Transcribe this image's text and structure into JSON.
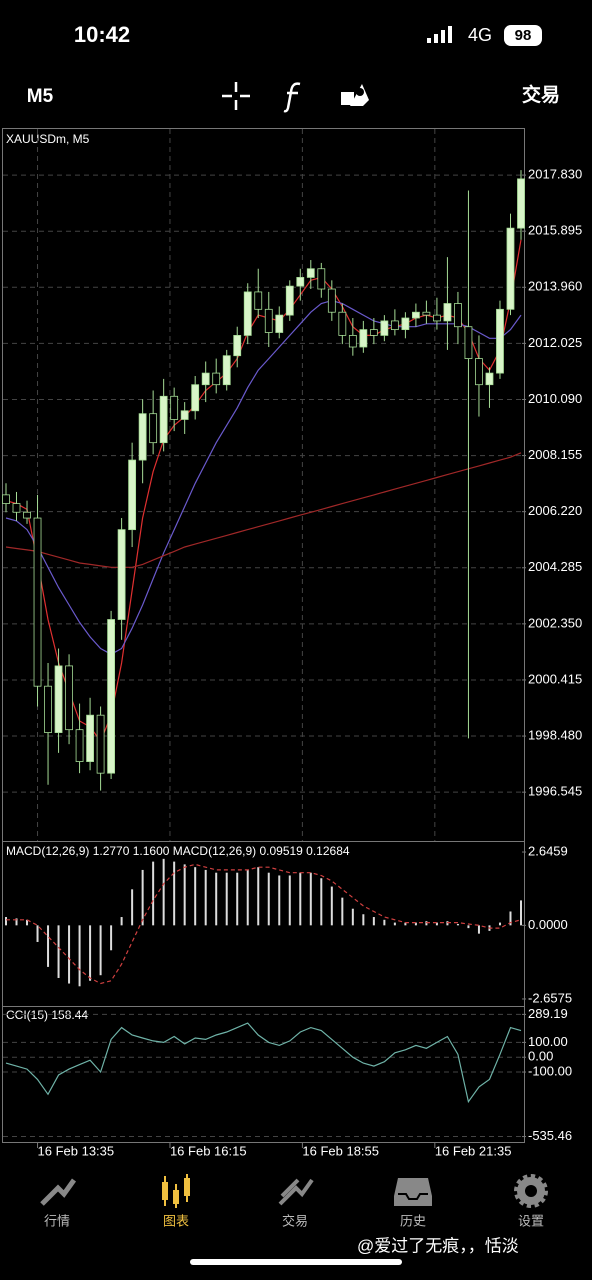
{
  "status_bar": {
    "time": "10:42",
    "network": "4G",
    "battery": "98"
  },
  "toolbar": {
    "timeframe": "M5",
    "trade": "交易"
  },
  "chart_data": [
    {
      "type": "candlestick",
      "title": "XAUUSDm, M5",
      "x": [
        0,
        1,
        2,
        3,
        4,
        5,
        6,
        7,
        8,
        9,
        10,
        11,
        12,
        13,
        14,
        15,
        16,
        17,
        18,
        19,
        20,
        21,
        22,
        23,
        24,
        25,
        26,
        27,
        28,
        29,
        30,
        31,
        32,
        33,
        34,
        35,
        36,
        37,
        38,
        39,
        40,
        41,
        42,
        43,
        44,
        45,
        46,
        47,
        48,
        49
      ],
      "open": [
        2006.8,
        2006.5,
        2006.2,
        2006.0,
        2000.2,
        1998.6,
        2000.9,
        1998.7,
        1997.6,
        1999.2,
        1997.2,
        2002.5,
        2005.6,
        2008.0,
        2009.6,
        2008.6,
        2010.2,
        2009.4,
        2009.7,
        2010.6,
        2011.0,
        2010.6,
        2011.6,
        2012.3,
        2013.8,
        2013.2,
        2012.4,
        2013.0,
        2014.0,
        2014.3,
        2014.6,
        2013.9,
        2013.1,
        2012.3,
        2011.9,
        2012.5,
        2012.3,
        2012.8,
        2012.5,
        2012.9,
        2013.1,
        2013.0,
        2012.8,
        2013.4,
        2012.6,
        2011.5,
        2010.6,
        2011.0,
        2013.2,
        2016.0
      ],
      "high": [
        2007.2,
        2006.9,
        2006.6,
        2006.8,
        2001.0,
        2001.5,
        2001.3,
        1999.6,
        1999.8,
        1999.5,
        2002.8,
        2006.0,
        2008.6,
        2010.1,
        2010.4,
        2010.8,
        2010.5,
        2010.0,
        2010.9,
        2011.4,
        2011.5,
        2011.8,
        2012.6,
        2014.1,
        2014.6,
        2013.8,
        2013.3,
        2014.2,
        2014.6,
        2014.9,
        2014.8,
        2014.2,
        2013.4,
        2012.9,
        2012.8,
        2012.9,
        2013.0,
        2013.2,
        2013.1,
        2013.4,
        2013.5,
        2013.6,
        2015.0,
        2013.8,
        2017.3,
        2012.3,
        2011.2,
        2013.5,
        2016.5,
        2018.0
      ],
      "low": [
        2006.2,
        2005.9,
        2005.8,
        1999.5,
        1996.8,
        1997.9,
        1998.2,
        1997.2,
        1997.3,
        1996.6,
        1997.0,
        2001.8,
        2005.0,
        2007.2,
        2008.2,
        2008.3,
        2009.0,
        2008.9,
        2009.4,
        2010.0,
        2010.3,
        2010.4,
        2011.2,
        2012.0,
        2012.9,
        2011.9,
        2012.2,
        2012.8,
        2013.5,
        2013.9,
        2013.6,
        2012.8,
        2012.0,
        2011.6,
        2011.7,
        2012.0,
        2012.1,
        2012.3,
        2012.2,
        2012.6,
        2012.7,
        2012.5,
        2011.8,
        2012.0,
        1998.4,
        2009.5,
        2009.8,
        2010.8,
        2013.0,
        2015.6
      ],
      "close": [
        2006.5,
        2006.2,
        2006.0,
        2000.2,
        1998.6,
        2000.9,
        1998.7,
        1997.6,
        1999.2,
        1997.2,
        2002.5,
        2005.6,
        2008.0,
        2009.6,
        2008.6,
        2010.2,
        2009.4,
        2009.7,
        2010.6,
        2011.0,
        2010.6,
        2011.6,
        2012.3,
        2013.8,
        2013.2,
        2012.4,
        2013.0,
        2014.0,
        2014.3,
        2014.6,
        2013.9,
        2013.1,
        2012.3,
        2011.9,
        2012.5,
        2012.3,
        2012.8,
        2012.5,
        2012.9,
        2013.1,
        2013.0,
        2012.8,
        2013.4,
        2012.6,
        2011.5,
        2010.6,
        2011.0,
        2013.2,
        2016.0,
        2017.7
      ],
      "up_color": "#d8f5c8",
      "down_color": "#000000",
      "edge_color": "#a6dc96",
      "lines": [
        {
          "color": "#e03030",
          "values": [
            2006.6,
            2006.5,
            2006.3,
            2004.5,
            2002.5,
            2001.0,
            2000.0,
            1999.0,
            1998.8,
            1998.3,
            1999.2,
            2001.0,
            2003.5,
            2006.0,
            2007.6,
            2008.7,
            2009.2,
            2009.5,
            2009.9,
            2010.4,
            2010.7,
            2011.0,
            2011.5,
            2012.4,
            2013.0,
            2012.9,
            2012.8,
            2013.2,
            2013.7,
            2014.2,
            2014.3,
            2013.9,
            2013.3,
            2012.6,
            2012.3,
            2012.3,
            2012.5,
            2012.6,
            2012.7,
            2012.9,
            2013.0,
            2012.9,
            2013.0,
            2012.9,
            2012.4,
            2011.5,
            2011.1,
            2011.8,
            2013.5,
            2015.6
          ]
        },
        {
          "color": "#6a5acd",
          "values": [
            2006.0,
            2005.9,
            2005.6,
            2005.0,
            2004.3,
            2003.6,
            2003.0,
            2002.4,
            2001.9,
            2001.5,
            2001.3,
            2001.5,
            2002.2,
            2003.0,
            2003.9,
            2004.8,
            2005.6,
            2006.4,
            2007.2,
            2007.9,
            2008.6,
            2009.2,
            2009.8,
            2010.5,
            2011.1,
            2011.5,
            2011.9,
            2012.3,
            2012.7,
            2013.1,
            2013.4,
            2013.5,
            2013.4,
            2013.2,
            2013.0,
            2012.8,
            2012.7,
            2012.6,
            2012.6,
            2012.6,
            2012.7,
            2012.7,
            2012.7,
            2012.7,
            2012.6,
            2012.4,
            2012.2,
            2012.2,
            2012.5,
            2013.0
          ]
        },
        {
          "color": "#a02828",
          "values": [
            2005.0,
            2004.95,
            2004.9,
            2004.85,
            2004.75,
            2004.65,
            2004.55,
            2004.45,
            2004.4,
            2004.35,
            2004.3,
            2004.3,
            2004.3,
            2004.4,
            2004.55,
            2004.7,
            2004.85,
            2005.0,
            2005.1,
            2005.2,
            2005.3,
            2005.4,
            2005.5,
            2005.6,
            2005.7,
            2005.8,
            2005.9,
            2006.0,
            2006.1,
            2006.2,
            2006.3,
            2006.4,
            2006.5,
            2006.6,
            2006.7,
            2006.8,
            2006.9,
            2007.0,
            2007.1,
            2007.2,
            2007.3,
            2007.4,
            2007.5,
            2007.6,
            2007.7,
            2007.8,
            2007.9,
            2008.0,
            2008.1,
            2008.25
          ]
        }
      ],
      "xlim": [
        0,
        49
      ],
      "xticks": [
        {
          "value": 3,
          "label": "16 Feb 13:35"
        },
        {
          "value": 15.6,
          "label": "16 Feb 16:15"
        },
        {
          "value": 28.2,
          "label": "16 Feb 18:55"
        },
        {
          "value": 40.8,
          "label": "16 Feb 21:35"
        }
      ],
      "ylim": [
        1994.86,
        2019.42
      ],
      "yticks": [
        {
          "value": 2017.83,
          "label": "2017.830"
        },
        2015.895,
        {
          "value": 2013.96,
          "label": "2013.960"
        },
        2012.025,
        {
          "value": 2010.09,
          "label": "2010.090"
        },
        2008.155,
        {
          "value": 2006.22,
          "label": "2006.220"
        },
        2004.285,
        {
          "value": 2002.35,
          "label": "2002.350"
        },
        2000.415,
        {
          "value": 1998.48,
          "label": "1998.480"
        },
        1996.545
      ],
      "grid": true
    },
    {
      "type": "bar",
      "title": "MACD(12,26,9) 1.2770 1.1600 MACD(12,26,9) 0.09519 0.12684",
      "color": "#dddddd",
      "values": [
        0.3,
        0.25,
        0.2,
        -0.6,
        -1.5,
        -1.9,
        -2.1,
        -2.2,
        -2.0,
        -1.8,
        -0.9,
        0.3,
        1.3,
        2.0,
        2.3,
        2.4,
        2.3,
        2.2,
        2.1,
        2.0,
        1.9,
        1.9,
        1.9,
        2.0,
        2.1,
        1.9,
        1.8,
        1.8,
        1.9,
        1.9,
        1.7,
        1.4,
        1.0,
        0.6,
        0.4,
        0.3,
        0.2,
        0.1,
        0.1,
        0.1,
        0.15,
        0.1,
        0.15,
        0.05,
        -0.1,
        -0.3,
        -0.2,
        0.1,
        0.5,
        0.9
      ],
      "lines": [
        {
          "color": "#d04040",
          "dashed": true,
          "values": [
            0.2,
            0.2,
            0.2,
            0.0,
            -0.4,
            -0.8,
            -1.2,
            -1.6,
            -1.9,
            -2.1,
            -2.0,
            -1.4,
            -0.6,
            0.2,
            0.9,
            1.5,
            1.9,
            2.1,
            2.2,
            2.1,
            2.0,
            2.0,
            2.0,
            2.0,
            2.1,
            2.1,
            2.0,
            1.9,
            1.9,
            1.9,
            1.8,
            1.6,
            1.3,
            1.0,
            0.7,
            0.5,
            0.3,
            0.2,
            0.1,
            0.1,
            0.1,
            0.1,
            0.1,
            0.1,
            0.05,
            0.0,
            -0.1,
            -0.1,
            0.1,
            0.2
          ]
        }
      ],
      "ylim": [
        -2.911,
        3.008
      ],
      "yticks": [
        2.6459,
        {
          "value": 0,
          "label": "0.0000"
        },
        -2.6575
      ],
      "grid": false
    },
    {
      "type": "line",
      "title": "CCI(15) 158.44",
      "color": "#6fb3a8",
      "values": [
        -40,
        -60,
        -80,
        -150,
        -250,
        -120,
        -80,
        -50,
        -20,
        -100,
        120,
        200,
        150,
        130,
        110,
        100,
        140,
        90,
        130,
        120,
        150,
        170,
        200,
        230,
        150,
        100,
        80,
        110,
        170,
        200,
        180,
        120,
        60,
        0,
        -40,
        -60,
        -30,
        30,
        50,
        80,
        60,
        100,
        140,
        20,
        -300,
        -200,
        -150,
        20,
        200,
        180
      ],
      "ylim": [
        -579,
        339
      ],
      "yticks": [
        289.19,
        {
          "value": 100,
          "label": "100.00"
        },
        {
          "value": 0,
          "label": "0.00"
        },
        {
          "value": -100,
          "label": "-100.00"
        },
        -535.46
      ],
      "grid": true
    }
  ],
  "nav": {
    "items": [
      "行情",
      "图表",
      "交易",
      "历史",
      "设置"
    ],
    "active": 1
  },
  "watermark": "@爱过了无痕，，恬淡"
}
